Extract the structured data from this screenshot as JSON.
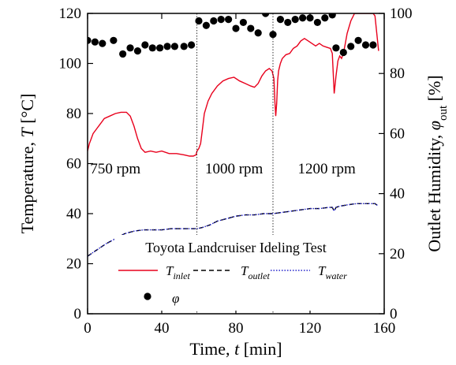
{
  "chart_data": {
    "type": "line",
    "title": "Toyota Landcruiser Ideling Test",
    "xlabel": {
      "text": "Time, ",
      "var": "t",
      "unit": " [min]"
    },
    "ylabel_left": {
      "text": "Temperature, ",
      "var": "T",
      "unit": " [°C]"
    },
    "ylabel_right": {
      "text": "Outlet Humidity, ",
      "var": "φ",
      "sub": "out",
      "unit": " [%]"
    },
    "xlim": [
      0,
      160
    ],
    "ylim_left": [
      0,
      120
    ],
    "ylim_right": [
      0,
      100
    ],
    "xticks": [
      0,
      40,
      80,
      120,
      160
    ],
    "yticks_left": [
      0,
      20,
      40,
      60,
      80,
      100,
      120
    ],
    "yticks_right": [
      0,
      20,
      40,
      60,
      80,
      100
    ],
    "grid": false,
    "legend_position": "lower-left",
    "region_dividers": [
      59,
      100
    ],
    "regions": [
      {
        "label": "750 rpm",
        "x": 15,
        "y": 56
      },
      {
        "label": "1000 rpm",
        "x": 79,
        "y": 56
      },
      {
        "label": "1200 rpm",
        "x": 129,
        "y": 56
      }
    ],
    "series": [
      {
        "name": "T",
        "sub": "inlet",
        "axis": "left",
        "style": "solid",
        "color": "#e8001c",
        "x": [
          0,
          1,
          2,
          3,
          5,
          7,
          9,
          12,
          15,
          18,
          21,
          23,
          25,
          27,
          29,
          31,
          34,
          37,
          40,
          44,
          48,
          52,
          55,
          57,
          58.5,
          59,
          60,
          61,
          62,
          63,
          65,
          67,
          70,
          73,
          76,
          79,
          82,
          85,
          88,
          90,
          92,
          94,
          96,
          98,
          99.5,
          100.5,
          101,
          101.5,
          102,
          102.5,
          103,
          104,
          105,
          107,
          109,
          111,
          113,
          115,
          117,
          119,
          121,
          123,
          125,
          127,
          129,
          131,
          132,
          133,
          134,
          135,
          136,
          137,
          138,
          139,
          140,
          142,
          144,
          146,
          148,
          150,
          152,
          154,
          155,
          156,
          157
        ],
        "y": [
          65,
          68,
          70,
          72,
          74,
          76,
          78,
          79,
          80,
          80.5,
          80.5,
          79,
          75,
          70,
          66,
          64.5,
          65,
          64.5,
          65,
          64,
          64,
          63.5,
          63,
          63,
          63.5,
          65,
          66,
          68,
          74,
          80,
          85,
          88,
          91,
          93,
          94,
          94.5,
          93,
          92,
          91,
          90.5,
          92,
          95,
          97,
          98,
          97,
          94,
          85,
          79,
          84,
          93,
          97,
          100,
          102,
          103.5,
          104,
          106,
          107,
          109,
          110,
          109,
          108,
          107,
          108,
          107,
          106.5,
          106,
          104,
          88,
          95,
          101,
          103,
          102,
          104,
          108,
          112,
          117,
          120,
          120,
          120,
          120,
          120,
          120,
          119,
          112,
          105
        ]
      },
      {
        "name": "T",
        "sub": "outlet",
        "axis": "left",
        "style": "dashed",
        "color": "#000000",
        "x": [
          0,
          5,
          10,
          15,
          20,
          25,
          30,
          35,
          40,
          45,
          50,
          55,
          59,
          62,
          66,
          70,
          75,
          80,
          85,
          90,
          95,
          100,
          105,
          110,
          115,
          120,
          125,
          130,
          132,
          133,
          134,
          136,
          140,
          145,
          150,
          155,
          157
        ],
        "y": [
          23,
          25.5,
          28,
          30,
          32,
          33,
          33.5,
          33.5,
          33.5,
          34,
          34,
          34,
          34,
          34.5,
          35.5,
          37,
          38,
          39,
          39.5,
          39.5,
          40,
          40,
          40.5,
          41,
          41.5,
          42,
          42,
          42.5,
          42.5,
          41,
          42.5,
          43,
          43.5,
          44,
          44,
          44,
          43
        ]
      },
      {
        "name": "T",
        "sub": "water",
        "axis": "left",
        "style": "dotted",
        "color": "#2222cc",
        "x": [
          0,
          5,
          10,
          15,
          20,
          25,
          30,
          35,
          40,
          45,
          50,
          55,
          59,
          62,
          66,
          70,
          75,
          80,
          85,
          90,
          95,
          100,
          105,
          110,
          115,
          120,
          125,
          130,
          132,
          133,
          134,
          136,
          140,
          145,
          150,
          155,
          157
        ],
        "y": [
          23,
          25.5,
          28,
          30,
          32,
          33,
          33.5,
          33.5,
          33.5,
          34,
          34,
          34,
          34,
          34.5,
          35.5,
          37,
          38,
          39,
          39.5,
          39.5,
          40,
          40,
          40.5,
          41,
          41.5,
          42,
          42,
          42.5,
          42.5,
          41,
          42.5,
          43,
          43.5,
          44,
          44,
          44,
          43
        ]
      },
      {
        "name": "φ",
        "sub": "",
        "axis": "right",
        "style": "markers",
        "color": "#000000",
        "x": [
          0,
          4,
          8,
          14,
          19,
          23,
          27,
          31,
          35,
          39,
          43,
          47,
          52,
          56,
          60,
          64,
          68,
          72,
          76,
          80,
          84,
          88,
          92,
          96,
          100,
          104,
          108,
          112,
          116,
          120,
          124,
          128,
          132,
          134,
          138,
          142,
          146,
          150,
          154
        ],
        "y": [
          91,
          90.5,
          90,
          91,
          86.5,
          88.5,
          87.5,
          89.5,
          88.5,
          88.5,
          89,
          89,
          89,
          89.5,
          97.5,
          96,
          97.5,
          98,
          98,
          95,
          97,
          95,
          93.5,
          100,
          93,
          98,
          97,
          98,
          98.5,
          98.5,
          97,
          98.5,
          99.5,
          88.5,
          87,
          89,
          91,
          89.5,
          89.5
        ]
      }
    ]
  }
}
